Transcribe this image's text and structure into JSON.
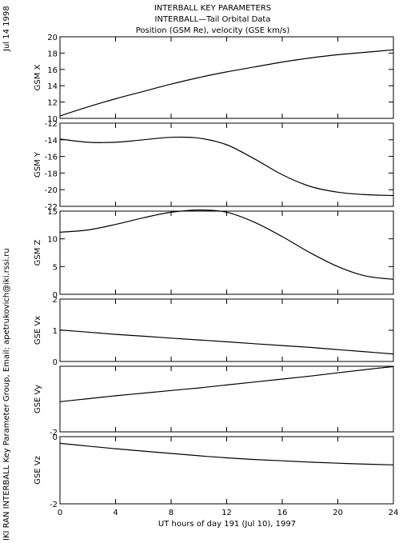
{
  "header": {
    "title_line1": "INTERBALL KEY PARAMETERS",
    "title_line2": "INTERBALL—Tail Orbital Data",
    "title_line3": "Position (GSM Re), velocity (GSE km/s)",
    "date_label": "Jul 14 1998",
    "credit": "IKI RAN INTERBALL Key Parameter Group, Email: apetrukovich@iki.rssi.ru"
  },
  "chart_data": {
    "type": "line",
    "x": [
      0,
      2,
      4,
      6,
      8,
      10,
      12,
      14,
      16,
      18,
      20,
      22,
      24
    ],
    "xlim": [
      0,
      24
    ],
    "xticks": [
      "0",
      "4",
      "8",
      "12",
      "16",
      "20",
      "24"
    ],
    "xlabel": "UT hours of day 191 (Jul 10), 1997",
    "grid": false,
    "panels": [
      {
        "ylabel": "GSM X",
        "ylim": [
          10,
          20
        ],
        "yticks": [
          "20",
          "18",
          "16",
          "14",
          "12",
          "10"
        ],
        "values": [
          10.3,
          11.4,
          12.4,
          13.3,
          14.2,
          15.0,
          15.7,
          16.3,
          16.9,
          17.4,
          17.8,
          18.1,
          18.4
        ]
      },
      {
        "ylabel": "GSM Y",
        "ylim": [
          -22,
          -12
        ],
        "yticks": [
          "-12",
          "-14",
          "-16",
          "-18",
          "-20",
          "-22"
        ],
        "values": [
          -13.9,
          -14.3,
          -14.3,
          -14.0,
          -13.7,
          -13.8,
          -14.6,
          -16.3,
          -18.2,
          -19.6,
          -20.3,
          -20.6,
          -20.7
        ]
      },
      {
        "ylabel": "GSM Z",
        "ylim": [
          0,
          15
        ],
        "yticks": [
          "15",
          "10",
          "5",
          "0"
        ],
        "values": [
          11.2,
          11.6,
          12.6,
          13.8,
          14.8,
          15.2,
          14.8,
          13.0,
          10.4,
          7.5,
          5.0,
          3.3,
          2.7
        ]
      },
      {
        "ylabel": "GSE Vx",
        "ylim": [
          0,
          2
        ],
        "yticks": [
          "2",
          "1",
          "0"
        ],
        "values": [
          1.01,
          0.94,
          0.87,
          0.81,
          0.75,
          0.69,
          0.63,
          0.57,
          0.51,
          0.45,
          0.38,
          0.31,
          0.24
        ]
      },
      {
        "ylabel": "GSE Vy",
        "ylim": [
          -2,
          0
        ],
        "yticks": [
          "-2"
        ],
        "values": [
          -1.08,
          -0.99,
          -0.9,
          -0.82,
          -0.74,
          -0.66,
          -0.57,
          -0.48,
          -0.39,
          -0.3,
          -0.2,
          -0.1,
          -0.01
        ]
      },
      {
        "ylabel": "GSE Vz",
        "ylim": [
          -2,
          0
        ],
        "yticks": [
          "0",
          "-2"
        ],
        "values": [
          -0.2,
          -0.28,
          -0.36,
          -0.43,
          -0.5,
          -0.57,
          -0.63,
          -0.68,
          -0.72,
          -0.76,
          -0.79,
          -0.82,
          -0.84
        ]
      }
    ]
  }
}
